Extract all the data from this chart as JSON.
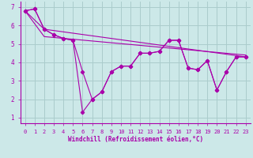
{
  "background_color": "#cce8e8",
  "line_color": "#aa00aa",
  "grid_color": "#aacccc",
  "xlabel": "Windchill (Refroidissement éolien,°C)",
  "xlim": [
    -0.5,
    23.5
  ],
  "ylim": [
    0.7,
    7.3
  ],
  "yticks": [
    1,
    2,
    3,
    4,
    5,
    6,
    7
  ],
  "xticks": [
    0,
    1,
    2,
    3,
    4,
    5,
    6,
    7,
    8,
    9,
    10,
    11,
    12,
    13,
    14,
    15,
    16,
    17,
    18,
    19,
    20,
    21,
    22,
    23
  ],
  "line1_x": [
    0,
    1,
    2,
    3,
    4,
    5,
    6,
    7,
    8,
    9,
    10,
    11,
    12,
    13,
    14,
    15,
    16,
    17,
    18,
    19,
    20,
    21,
    22,
    23
  ],
  "line1_y": [
    6.8,
    6.9,
    5.8,
    5.5,
    5.3,
    5.2,
    3.5,
    2.0,
    2.4,
    3.5,
    3.8,
    3.8,
    4.5,
    4.5,
    4.6,
    5.2,
    5.2,
    3.7,
    3.6,
    4.1,
    2.5,
    3.5,
    4.3,
    4.3
  ],
  "line2_x": [
    0,
    1,
    2,
    3,
    4,
    5,
    6,
    7,
    8,
    9,
    10,
    11,
    12,
    13,
    14,
    15,
    16,
    17,
    18,
    19,
    20,
    21,
    22,
    23
  ],
  "line2_y": [
    6.8,
    6.9,
    5.8,
    5.5,
    5.3,
    5.2,
    1.3,
    2.0,
    2.4,
    3.5,
    3.8,
    3.8,
    4.5,
    4.5,
    4.6,
    5.2,
    5.2,
    3.7,
    3.6,
    4.1,
    2.5,
    3.5,
    4.3,
    4.3
  ],
  "line3_x": [
    0,
    2,
    23
  ],
  "line3_y": [
    6.8,
    5.8,
    4.3
  ],
  "line4_x": [
    0,
    2,
    23
  ],
  "line4_y": [
    6.8,
    5.4,
    4.4
  ]
}
